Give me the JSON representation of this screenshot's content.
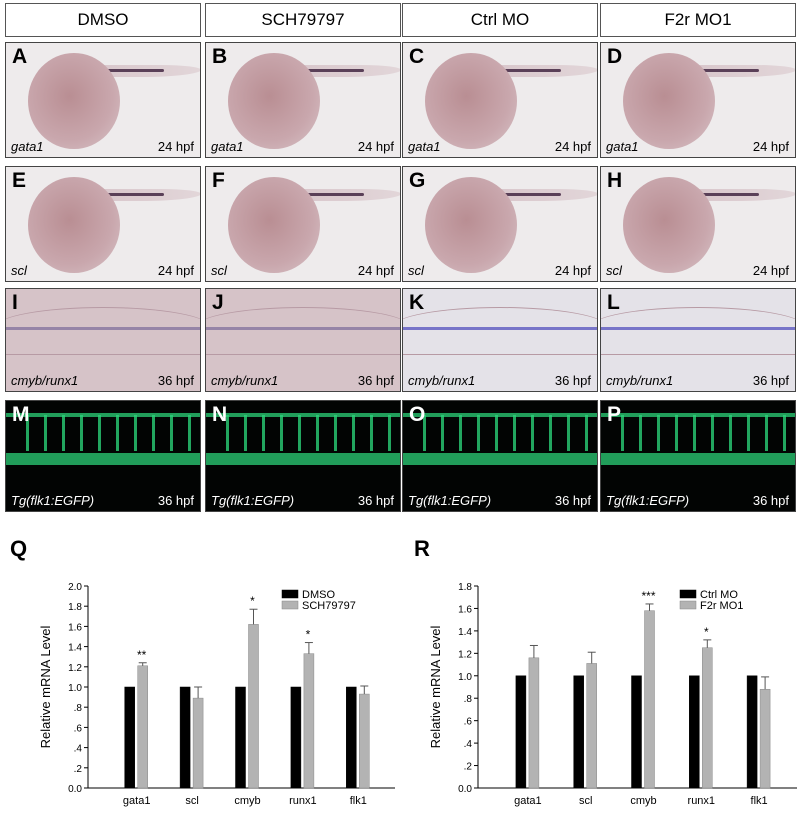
{
  "columns": [
    "DMSO",
    "SCH79797",
    "Ctrl MO",
    "F2r MO1"
  ],
  "rows": [
    {
      "letters": [
        "A",
        "B",
        "C",
        "D"
      ],
      "gene": "gata1",
      "stage": "24 hpf",
      "style": "embryo"
    },
    {
      "letters": [
        "E",
        "F",
        "G",
        "H"
      ],
      "gene": "scl",
      "stage": "24 hpf",
      "style": "embryo"
    },
    {
      "letters": [
        "I",
        "J",
        "K",
        "L"
      ],
      "gene": "cmyb/runx1",
      "stage": "36 hpf",
      "style": "trunk"
    },
    {
      "letters": [
        "M",
        "N",
        "O",
        "P"
      ],
      "gene": "Tg(flk1:EGFP)",
      "stage": "36 hpf",
      "style": "fluor"
    }
  ],
  "chart_data": [
    {
      "panel_label": "Q",
      "type": "bar",
      "ylabel": "Relative mRNA Level",
      "ylim": [
        0,
        2.0
      ],
      "yticks": [
        "0.0",
        ".2",
        ".4",
        ".6",
        ".8",
        "1.0",
        "1.2",
        "1.4",
        "1.6",
        "1.8",
        "2.0"
      ],
      "categories": [
        "gata1",
        "scl",
        "cmyb",
        "runx1",
        "flk1"
      ],
      "series": [
        {
          "name": "DMSO",
          "color": "#000000",
          "values": [
            1.0,
            1.0,
            1.0,
            1.0,
            1.0
          ],
          "errors": [
            0,
            0,
            0,
            0,
            0
          ]
        },
        {
          "name": "SCH79797",
          "color": "#b3b3b3",
          "values": [
            1.21,
            0.89,
            1.62,
            1.33,
            0.93
          ],
          "errors": [
            0.03,
            0.11,
            0.15,
            0.11,
            0.08
          ]
        }
      ],
      "annotations": [
        "**",
        "",
        "*",
        "*",
        ""
      ]
    },
    {
      "panel_label": "R",
      "type": "bar",
      "ylabel": "Relative mRNA Level",
      "ylim": [
        0,
        1.8
      ],
      "yticks": [
        "0.0",
        ".2",
        ".4",
        ".6",
        ".8",
        "1.0",
        "1.2",
        "1.4",
        "1.6",
        "1.8"
      ],
      "categories": [
        "gata1",
        "scl",
        "cmyb",
        "runx1",
        "flk1"
      ],
      "series": [
        {
          "name": "Ctrl MO",
          "color": "#000000",
          "values": [
            1.0,
            1.0,
            1.0,
            1.0,
            1.0
          ],
          "errors": [
            0,
            0,
            0,
            0,
            0
          ]
        },
        {
          "name": "F2r MO1",
          "color": "#b3b3b3",
          "values": [
            1.16,
            1.11,
            1.58,
            1.25,
            0.88
          ],
          "errors": [
            0.11,
            0.1,
            0.06,
            0.07,
            0.11
          ]
        }
      ],
      "annotations": [
        "",
        "",
        "***",
        "*",
        ""
      ]
    }
  ]
}
